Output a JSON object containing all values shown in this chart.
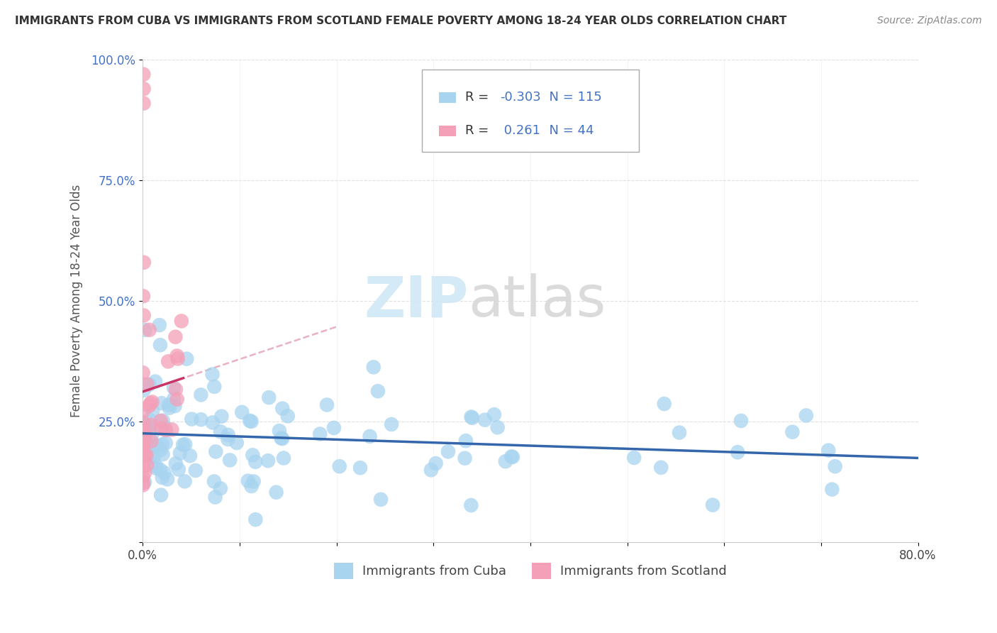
{
  "title": "IMMIGRANTS FROM CUBA VS IMMIGRANTS FROM SCOTLAND FEMALE POVERTY AMONG 18-24 YEAR OLDS CORRELATION CHART",
  "source": "Source: ZipAtlas.com",
  "ylabel": "Female Poverty Among 18-24 Year Olds",
  "xlim": [
    0.0,
    0.8
  ],
  "ylim": [
    0.0,
    1.0
  ],
  "legend1_label": "Immigrants from Cuba",
  "legend2_label": "Immigrants from Scotland",
  "r1": -0.303,
  "n1": 115,
  "r2": 0.261,
  "n2": 44,
  "color_cuba": "#a8d4f0",
  "color_scotland": "#f4a0b8",
  "color_cuba_line": "#3366aa",
  "color_scotland_line": "#cc3366",
  "color_scotland_line_dashed": "#e090a8",
  "watermark_zip": "ZIP",
  "watermark_atlas": "atlas",
  "background_color": "#ffffff"
}
